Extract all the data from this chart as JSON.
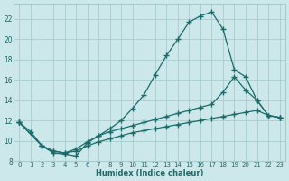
{
  "xlabel": "Humidex (Indice chaleur)",
  "bg_color": "#cce8ea",
  "grid_color": "#a8cccc",
  "line_color": "#1a6b6b",
  "xlim": [
    -0.5,
    23.5
  ],
  "ylim": [
    8,
    23.5
  ],
  "xticks": [
    0,
    1,
    2,
    3,
    4,
    5,
    6,
    7,
    8,
    9,
    10,
    11,
    12,
    13,
    14,
    15,
    16,
    17,
    18,
    19,
    20,
    21,
    22,
    23
  ],
  "yticks": [
    8,
    10,
    12,
    14,
    16,
    18,
    20,
    22
  ],
  "curve1_x": [
    0,
    1,
    2,
    3,
    4,
    5,
    6,
    7,
    8,
    9,
    10,
    11,
    12,
    13,
    14,
    15,
    16,
    17,
    18,
    19,
    20,
    21,
    22,
    23
  ],
  "curve1_y": [
    11.8,
    10.9,
    9.5,
    8.8,
    8.7,
    8.5,
    9.8,
    10.5,
    11.2,
    12.0,
    13.2,
    14.5,
    16.5,
    18.4,
    20.0,
    21.7,
    22.3,
    22.7,
    21.0,
    17.0,
    16.3,
    14.0,
    12.5,
    12.3
  ],
  "curve2_x": [
    0,
    2,
    3,
    4,
    5,
    6,
    7,
    8,
    9,
    10,
    11,
    12,
    13,
    14,
    15,
    16,
    17,
    18,
    19,
    20,
    21,
    22,
    23
  ],
  "curve2_y": [
    11.8,
    9.5,
    9.0,
    8.8,
    9.2,
    9.9,
    10.5,
    10.9,
    11.2,
    11.5,
    11.8,
    12.1,
    12.4,
    12.7,
    13.0,
    13.3,
    13.6,
    14.8,
    16.3,
    15.0,
    14.0,
    12.5,
    12.3
  ],
  "curve3_x": [
    0,
    2,
    3,
    4,
    5,
    6,
    7,
    8,
    9,
    10,
    11,
    12,
    13,
    14,
    15,
    16,
    17,
    18,
    19,
    20,
    21,
    22,
    23
  ],
  "curve3_y": [
    11.8,
    9.5,
    9.0,
    8.8,
    9.0,
    9.5,
    9.9,
    10.2,
    10.5,
    10.8,
    11.0,
    11.2,
    11.4,
    11.6,
    11.8,
    12.0,
    12.2,
    12.4,
    12.6,
    12.8,
    13.0,
    12.5,
    12.3
  ]
}
